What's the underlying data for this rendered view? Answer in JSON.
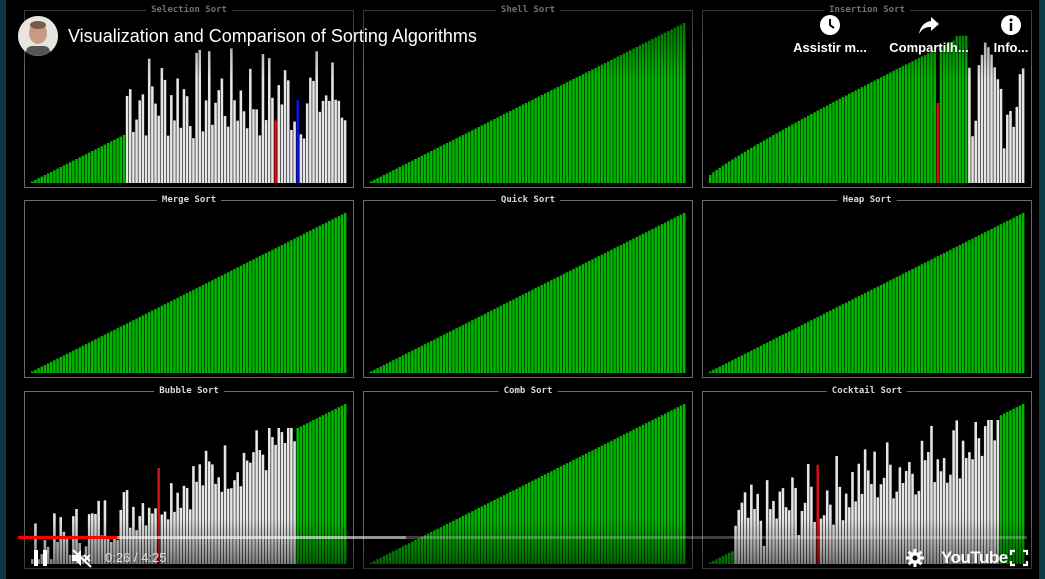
{
  "video": {
    "title": "Visualization and Comparison of Sorting Algorithms",
    "time_current": "0:26",
    "time_separator": " / ",
    "time_total": "4:25",
    "progress_played": 0.098,
    "progress_buffered": 0.385
  },
  "top_actions": {
    "watch_later": "Assistir m...",
    "share": "Compartilh...",
    "info": "Info..."
  },
  "icons": {
    "watch_later": "clock-icon",
    "share": "share-arrow-icon",
    "info": "info-icon",
    "pause": "pause-icon",
    "mute": "muted-speaker-icon",
    "settings": "gear-icon",
    "fullscreen": "fullscreen-icon"
  },
  "brand": {
    "logo_text": "YouTube"
  },
  "colors": {
    "sorted": "#00b800",
    "unsorted": "#e6e6e6",
    "compare_red": "#d01010",
    "compare_blue": "#1010e0",
    "progress_red": "#ff0000"
  },
  "panels": [
    {
      "id": "selection",
      "title": "Selection Sort"
    },
    {
      "id": "shell",
      "title": "Shell Sort"
    },
    {
      "id": "insertion",
      "title": "Insertion Sort"
    },
    {
      "id": "merge",
      "title": "Merge Sort"
    },
    {
      "id": "quick",
      "title": "Quick Sort"
    },
    {
      "id": "heap",
      "title": "Heap Sort"
    },
    {
      "id": "bubble",
      "title": "Bubble Sort"
    },
    {
      "id": "comb",
      "title": "Comb Sort"
    },
    {
      "id": "cocktail",
      "title": "Cocktail Sort"
    }
  ]
}
